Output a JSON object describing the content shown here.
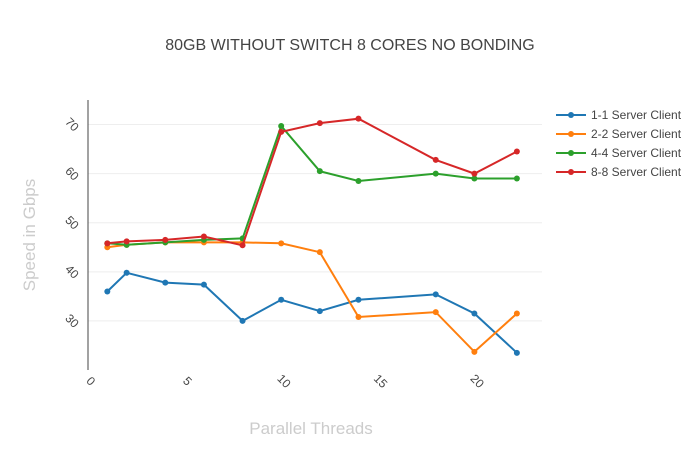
{
  "chart_data": {
    "type": "line",
    "title": "80GB WITHOUT SWITCH 8 CORES NO BONDING",
    "xlabel": "Parallel Threads",
    "ylabel": "Speed in Gbps",
    "xlim": [
      0,
      23.5
    ],
    "ylim": [
      20,
      75
    ],
    "x_ticks": [
      0,
      5,
      10,
      15,
      20
    ],
    "y_ticks": [
      30,
      40,
      50,
      60,
      70
    ],
    "grid": true,
    "legend_position": "top-right",
    "series": [
      {
        "name": "1-1 Server Client",
        "color": "#1f77b4",
        "x": [
          1,
          2,
          4,
          6,
          8,
          10,
          12,
          14,
          18,
          20,
          22.2
        ],
        "y": [
          36,
          39.8,
          37.8,
          37.4,
          30,
          34.3,
          32,
          34.3,
          35.4,
          31.5,
          23.5
        ]
      },
      {
        "name": "2-2 Server Client",
        "color": "#ff7f0e",
        "x": [
          1,
          2,
          4,
          6,
          8,
          10,
          12,
          14,
          18,
          20,
          22.2
        ],
        "y": [
          45,
          45.5,
          46,
          46,
          46,
          45.8,
          44,
          30.8,
          31.8,
          23.7,
          31.5
        ]
      },
      {
        "name": "4-4 Server Client",
        "color": "#2ca02c",
        "x": [
          1,
          2,
          4,
          6,
          8,
          10,
          12,
          14,
          18,
          20,
          22.2
        ],
        "y": [
          45.8,
          45.5,
          46,
          46.5,
          46.8,
          69.7,
          60.5,
          58.5,
          60,
          59,
          59
        ]
      },
      {
        "name": "8-8 Server Client",
        "color": "#d62728",
        "x": [
          1,
          2,
          4,
          6,
          8,
          10,
          12,
          14,
          18,
          20,
          22.2
        ],
        "y": [
          45.8,
          46.2,
          46.5,
          47.2,
          45.4,
          68.5,
          70.3,
          71.2,
          62.8,
          60,
          64.5
        ]
      }
    ]
  }
}
